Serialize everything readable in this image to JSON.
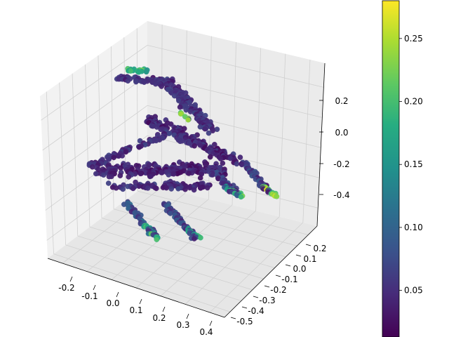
{
  "chart_data": {
    "type": "scatter",
    "projection": "3d",
    "title": "",
    "xlabel": "",
    "ylabel": "",
    "zlabel": "",
    "xlim": [
      -0.3,
      0.42
    ],
    "ylim": [
      -0.55,
      0.3
    ],
    "zlim": [
      -0.55,
      0.3
    ],
    "x_ticks": [
      "-0.2",
      "-0.1",
      "0.0",
      "0.1",
      "0.2",
      "0.3",
      "0.4"
    ],
    "y_ticks": [
      "-0.5",
      "-0.4",
      "-0.3",
      "-0.2",
      "-0.1",
      "0.0",
      "0.1",
      "0.2"
    ],
    "z_ticks": [
      "-0.4",
      "-0.2",
      "0.0",
      "0.2"
    ],
    "grid": true,
    "colormap": "viridis",
    "color_range": [
      0.013,
      0.28
    ],
    "colorbar_ticks": [
      "0.05",
      "0.10",
      "0.15",
      "0.20",
      "0.25"
    ],
    "colorbar_tick_values": [
      0.05,
      0.1,
      0.15,
      0.2,
      0.25
    ],
    "colorbar_placement": "right",
    "description": "point cloud shaped like a four-legged animal (horse/dog), colored by a per-point value; most points dark purple (~0.03-0.07), extremities (head, hooves, tail) greenish-yellow (~0.18-0.28)"
  }
}
